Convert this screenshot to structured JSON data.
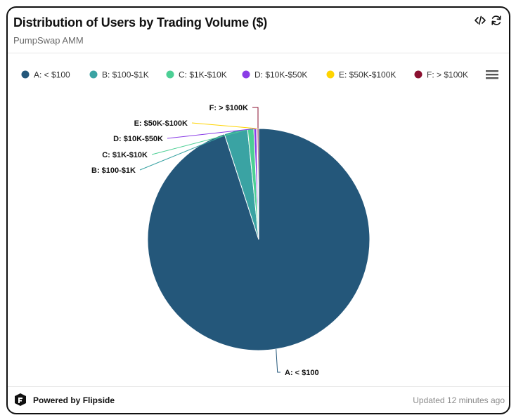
{
  "header": {
    "title": "Distribution of Users by Trading Volume ($)",
    "subtitle": "PumpSwap AMM",
    "embed_icon": "code-icon",
    "refresh_icon": "refresh-icon"
  },
  "legend": {
    "menu_icon": "hamburger-menu-icon"
  },
  "chart_data": {
    "type": "pie",
    "categories": [
      "A: < $100",
      "B: $100-$1K",
      "C: $1K-$10K",
      "D: $10K-$50K",
      "E: $50K-$100K",
      "F: > $100K"
    ],
    "values": [
      95.0,
      3.4,
      0.9,
      0.4,
      0.1,
      0.2
    ],
    "unit": "%",
    "colors": [
      "#24577a",
      "#3aa3a3",
      "#4ccf95",
      "#8a3de6",
      "#ffd400",
      "#8b1030"
    ],
    "data_labels": [
      "A: < $100",
      "B: $100-$1K",
      "C: $1K-$10K",
      "D: $10K-$50K",
      "E: $50K-$100K",
      "F: > $100K"
    ],
    "legend_position": "top"
  },
  "footer": {
    "powered_by": "Powered by Flipside",
    "updated": "Updated 12 minutes ago",
    "logo_icon": "flipside-logo-icon"
  }
}
